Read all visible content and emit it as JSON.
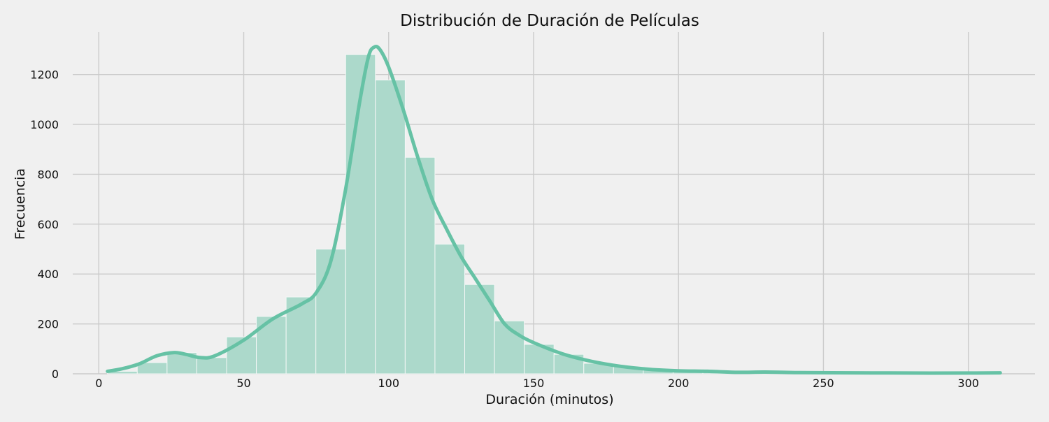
{
  "chart_data": {
    "type": "bar",
    "title": "Distribución de Duración de Películas",
    "xlabel": "Duración (minutos)",
    "ylabel": "Frecuencia",
    "xlim": [
      -9,
      323
    ],
    "ylim": [
      0,
      1370
    ],
    "x_ticks": [
      0,
      50,
      100,
      150,
      200,
      250,
      300
    ],
    "y_ticks": [
      0,
      200,
      400,
      600,
      800,
      1000,
      1200
    ],
    "grid": true,
    "colors": {
      "bar_fill": "#acd9cb",
      "bar_edge": "#f4f7f6",
      "kde_line": "#66c2a5",
      "grid": "#cbcbcb",
      "background": "#f0f0f0"
    },
    "histogram": {
      "bin_start": 3,
      "bin_width": 10.27,
      "counts": [
        10,
        45,
        85,
        65,
        148,
        230,
        308,
        500,
        1280,
        1178,
        868,
        520,
        358,
        212,
        118,
        78,
        42,
        28,
        14,
        10,
        6,
        4,
        3,
        3,
        2,
        2,
        1,
        1,
        1,
        1
      ]
    },
    "kde": {
      "x": [
        3,
        8,
        14,
        20,
        26,
        30,
        35,
        40,
        50,
        60,
        70,
        75,
        80,
        85,
        90,
        93,
        95,
        97,
        100,
        105,
        110,
        115,
        120,
        125,
        130,
        135,
        140,
        145,
        150,
        160,
        170,
        180,
        190,
        200,
        210,
        220,
        230,
        240,
        260,
        280,
        300,
        311
      ],
      "y": [
        10,
        20,
        40,
        72,
        85,
        78,
        65,
        72,
        135,
        220,
        280,
        325,
        450,
        730,
        1090,
        1270,
        1310,
        1300,
        1230,
        1060,
        870,
        700,
        580,
        470,
        380,
        290,
        200,
        155,
        125,
        80,
        50,
        30,
        18,
        12,
        10,
        6,
        7,
        5,
        4,
        3,
        3,
        4
      ]
    }
  }
}
